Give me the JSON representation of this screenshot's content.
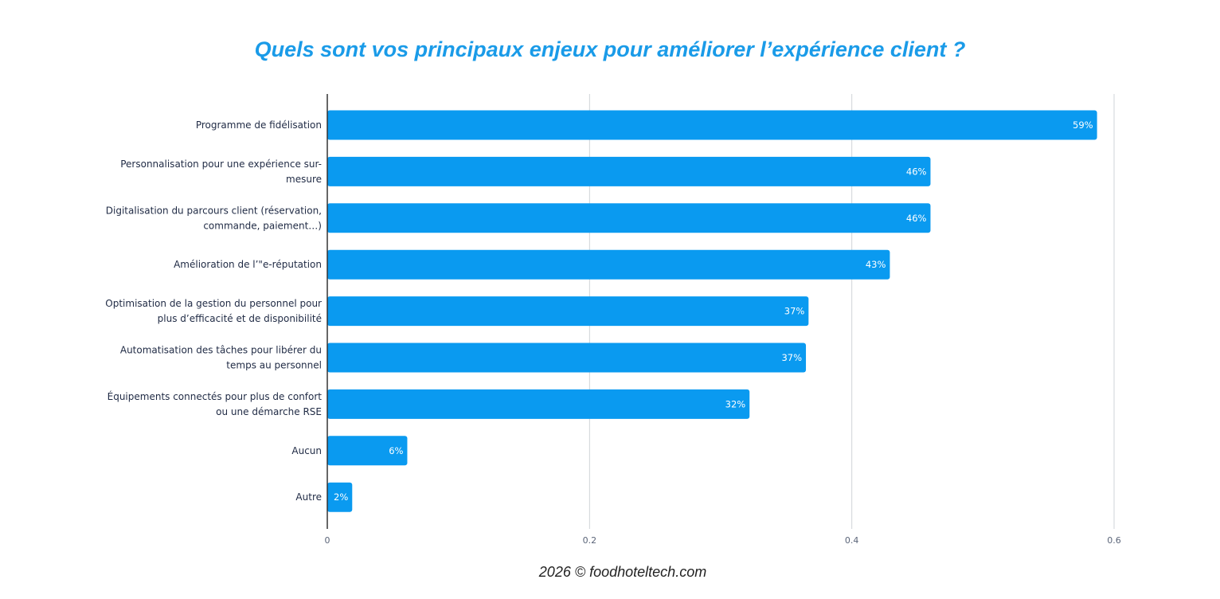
{
  "chart_data": {
    "type": "bar",
    "orientation": "horizontal",
    "title": "Quels sont vos principaux enjeux pour améliorer l’expérience client ?",
    "categories": [
      [
        "Programme de fidélisation"
      ],
      [
        "Personnalisation pour une expérience sur-",
        "mesure"
      ],
      [
        "Digitalisation du parcours client (réservation,",
        "commande, paiement…)"
      ],
      [
        "Amélioration de l’\"e-réputation"
      ],
      [
        "Optimisation de la gestion du personnel pour",
        "plus d’efficacité et de disponibilité"
      ],
      [
        "Automatisation des tâches pour libérer du",
        "temps au personnel"
      ],
      [
        "Équipements connectés pour plus de confort",
        "ou une démarche RSE"
      ],
      [
        "Aucun"
      ],
      [
        "Autre"
      ]
    ],
    "values": [
      0.587,
      0.46,
      0.46,
      0.429,
      0.367,
      0.365,
      0.322,
      0.061,
      0.019
    ],
    "value_labels": [
      "59%",
      "46%",
      "46%",
      "43%",
      "37%",
      "37%",
      "32%",
      "6%",
      "2%"
    ],
    "xlim": [
      0,
      0.6
    ],
    "xticks": [
      0,
      0.2,
      0.4,
      0.6
    ],
    "xtick_labels": [
      "0",
      "0.2",
      "0.4",
      "0.6"
    ],
    "xlabel": "",
    "ylabel": "",
    "grid": true,
    "legend": "none",
    "bar_color": "#0a9af0",
    "grid_color": "#cfd3d8",
    "axis_color": "#333333",
    "title_color": "#1a9be8"
  },
  "footer": {
    "credit": "2026 © foodhoteltech.com"
  }
}
